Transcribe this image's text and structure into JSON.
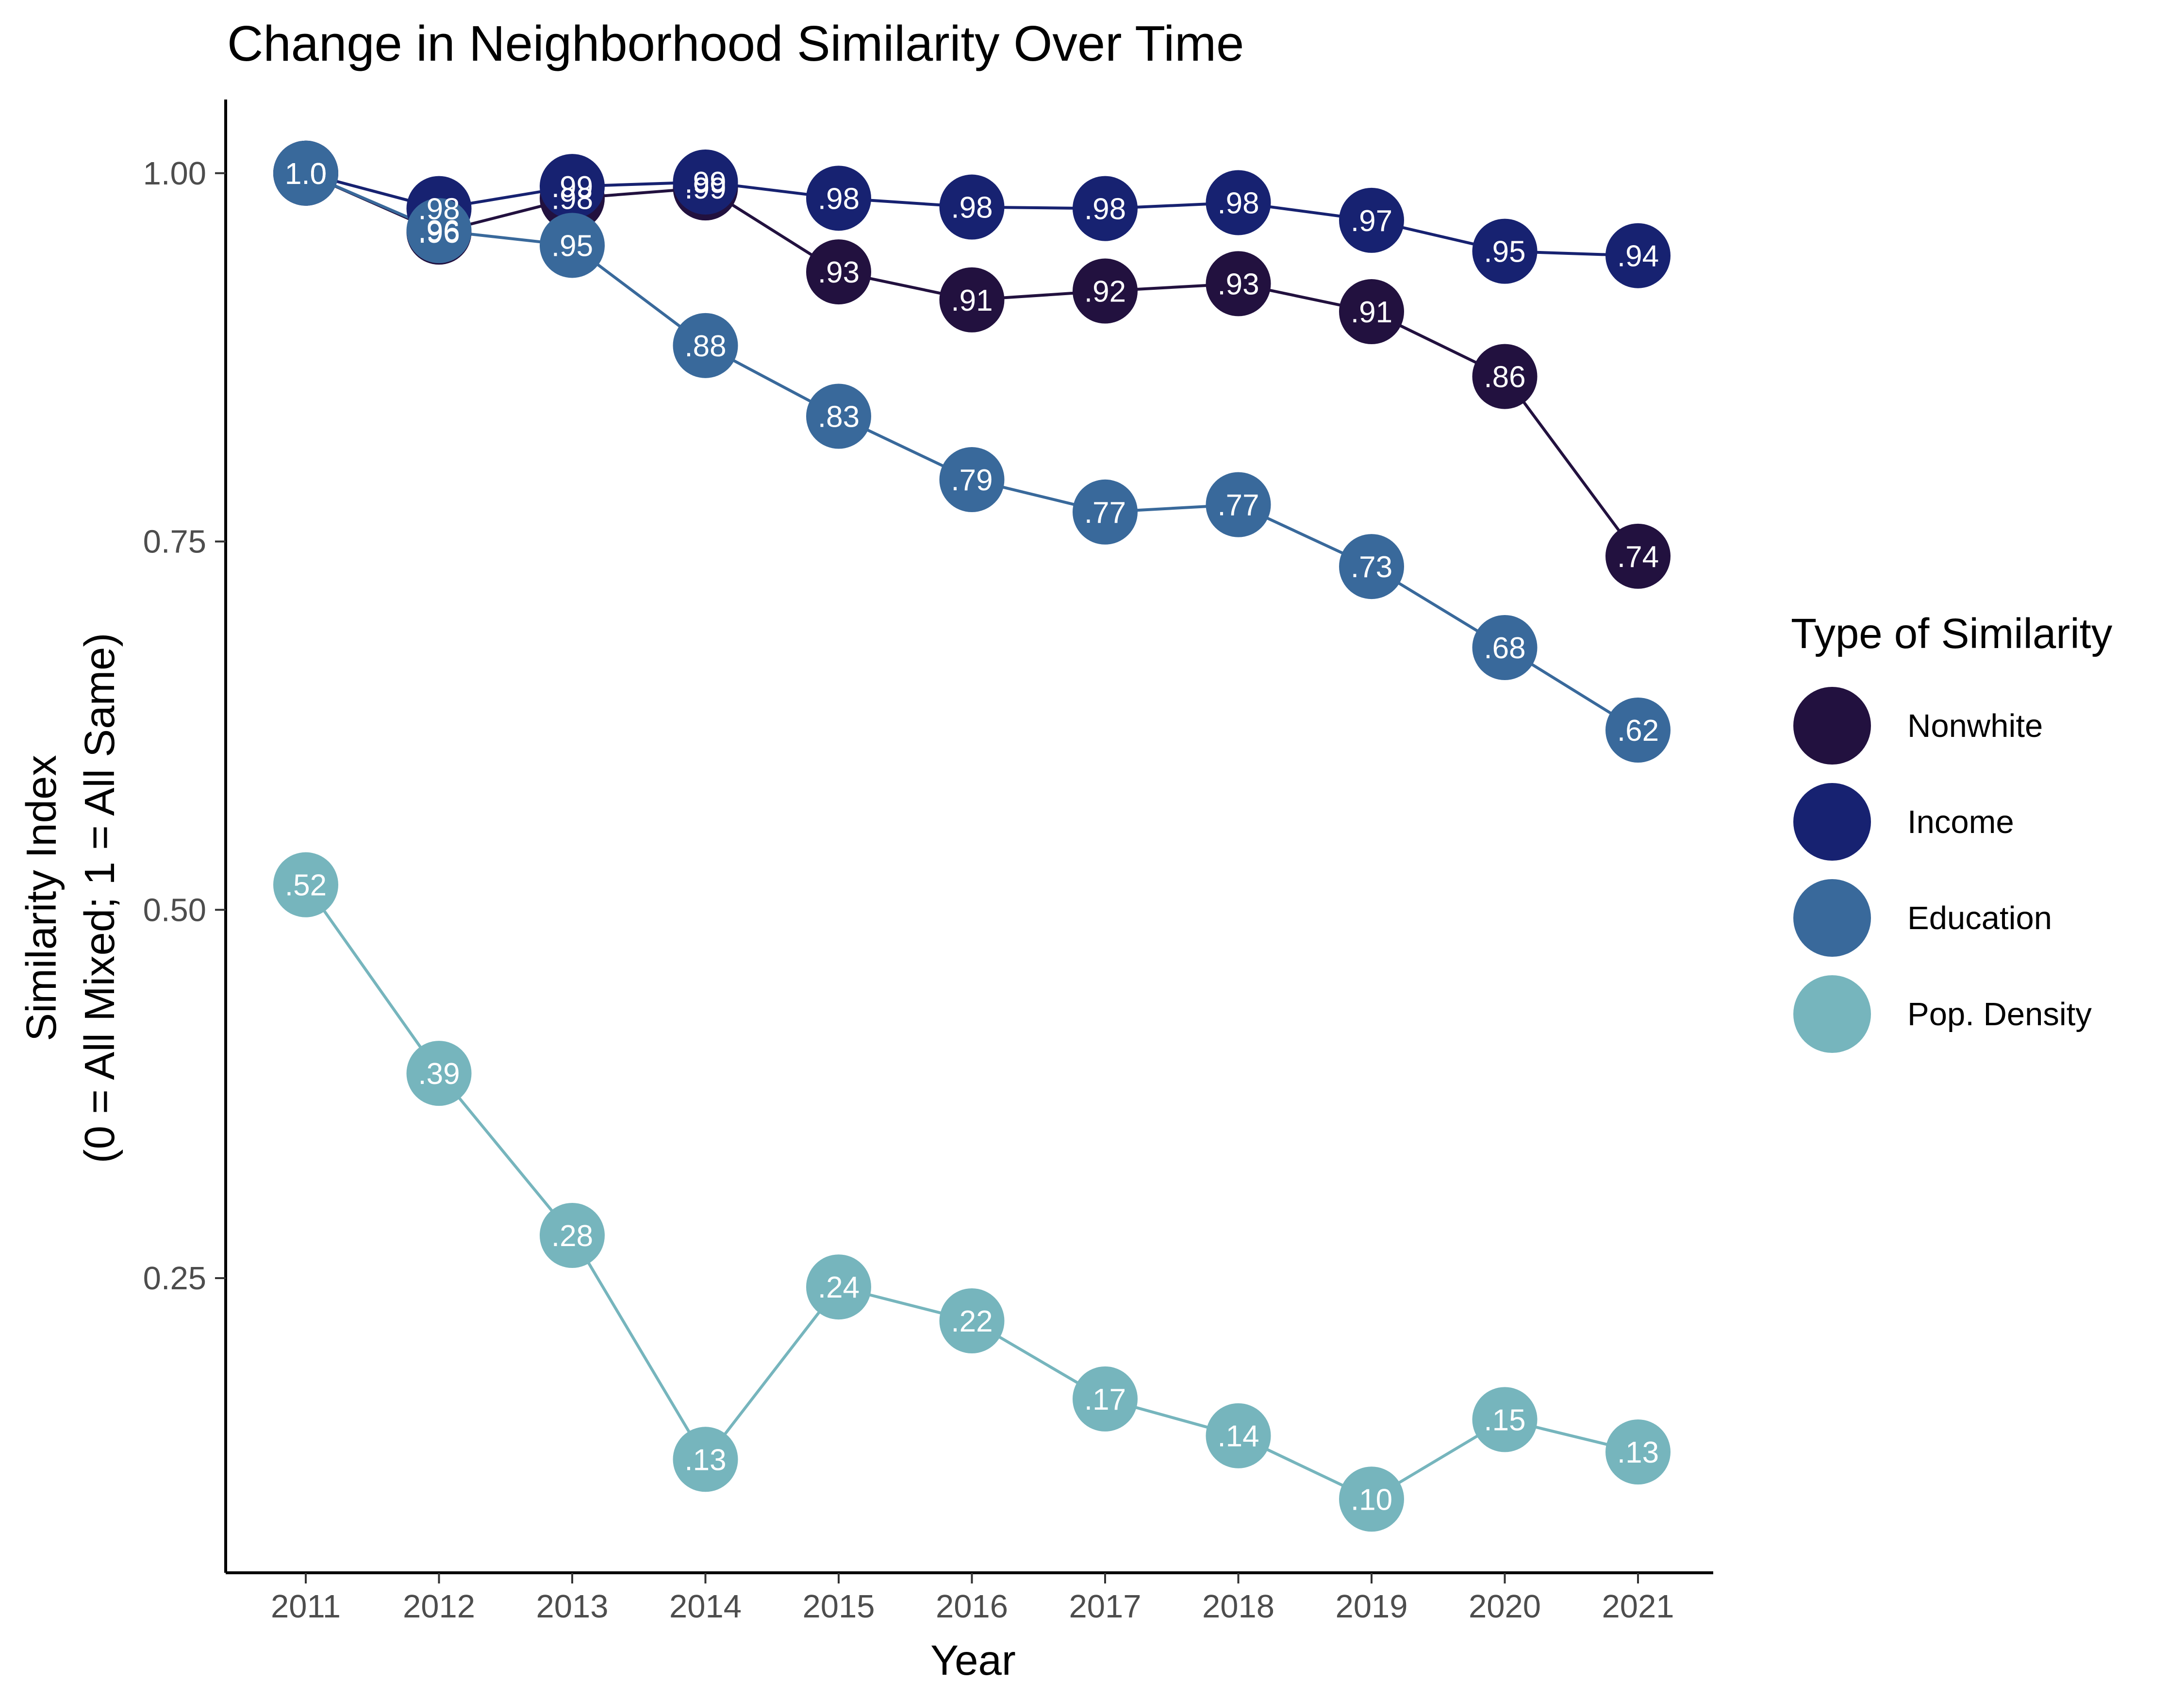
{
  "chart_data": {
    "type": "line",
    "title": "Change in Neighborhood Similarity Over Time",
    "xlabel": "Year",
    "ylabel_lines": [
      "Similarity Index",
      "(0 = All Mixed; 1 = All Same)"
    ],
    "x": [
      2011,
      2012,
      2013,
      2014,
      2015,
      2016,
      2017,
      2018,
      2019,
      2020,
      2021
    ],
    "x_ticks": [
      "2011",
      "2012",
      "2013",
      "2014",
      "2015",
      "2016",
      "2017",
      "2018",
      "2019",
      "2020",
      "2021"
    ],
    "y_ticks": [
      1.0,
      0.75,
      0.5,
      0.25
    ],
    "y_tick_labels": [
      "1.00",
      "0.75",
      "0.50",
      "0.25"
    ],
    "ylim": [
      0.05,
      1.05
    ],
    "grid": false,
    "legend": {
      "title": "Type of Similarity",
      "placement": "right"
    },
    "series": [
      {
        "name": "Nonwhite",
        "color": "#22113f",
        "values": [
          1.0,
          0.96,
          0.983,
          0.99,
          0.933,
          0.914,
          0.92,
          0.925,
          0.906,
          0.862,
          0.74
        ],
        "labels": [
          "1.0",
          ".96",
          ".98",
          ".99",
          ".93",
          ".91",
          ".92",
          ".93",
          ".91",
          ".86",
          ".74"
        ]
      },
      {
        "name": "Income",
        "color": "#172271",
        "values": [
          1.0,
          0.976,
          0.991,
          0.994,
          0.983,
          0.977,
          0.976,
          0.98,
          0.968,
          0.947,
          0.944
        ],
        "labels": [
          "1.0",
          ".98",
          ".99",
          ".99",
          ".98",
          ".98",
          ".98",
          ".98",
          ".97",
          ".95",
          ".94"
        ]
      },
      {
        "name": "Education",
        "color": "#39699b",
        "values": [
          1.0,
          0.961,
          0.951,
          0.883,
          0.835,
          0.792,
          0.77,
          0.775,
          0.733,
          0.678,
          0.622
        ],
        "labels": [
          "1.0",
          ".96",
          ".95",
          ".88",
          ".83",
          ".79",
          ".77",
          ".77",
          ".73",
          ".68",
          ".62"
        ]
      },
      {
        "name": "Pop. Density",
        "color": "#76b5bd",
        "values": [
          0.517,
          0.389,
          0.279,
          0.127,
          0.244,
          0.221,
          0.168,
          0.143,
          0.1,
          0.154,
          0.132
        ],
        "labels": [
          ".52",
          ".39",
          ".28",
          ".13",
          ".24",
          ".22",
          ".17",
          ".14",
          ".10",
          ".15",
          ".13"
        ]
      }
    ]
  }
}
